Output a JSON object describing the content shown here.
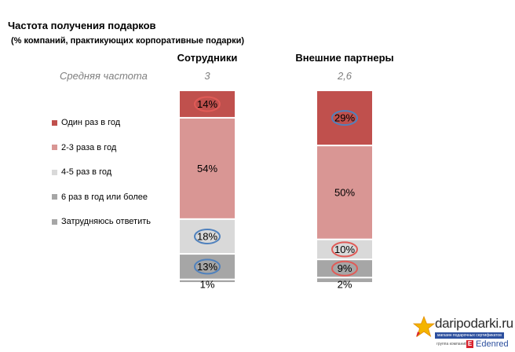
{
  "title": "Частота получения подарков",
  "subtitle": "(% компаний, практикующих корпоративные подарки)",
  "avg_label": "Средняя частота",
  "colors": {
    "once": "#c0504d",
    "two_three": "#d99694",
    "four_five": "#d9d9d9",
    "six_plus": "#a6a6a6",
    "hard": "#a6a6a6",
    "circle_red": "#e05b57",
    "circle_blue": "#4f81bd"
  },
  "chart_data": {
    "type": "bar",
    "stacked": true,
    "categories": [
      "Сотрудники",
      "Внешние партнеры"
    ],
    "averages": [
      "3",
      "2,6"
    ],
    "series": [
      {
        "name": "Один раз в год",
        "values": [
          14,
          29
        ],
        "labels": [
          "14%",
          "29%"
        ],
        "color": "#c0504d",
        "circle": [
          "red",
          "blue"
        ]
      },
      {
        "name": "2-3 раза в год",
        "values": [
          54,
          50
        ],
        "labels": [
          "54%",
          "50%"
        ],
        "color": "#d99694",
        "circle": [
          "",
          ""
        ]
      },
      {
        "name": "4-5 раз в год",
        "values": [
          18,
          10
        ],
        "labels": [
          "18%",
          "10%"
        ],
        "color": "#d9d9d9",
        "circle": [
          "blue",
          "red"
        ]
      },
      {
        "name": "6 раз в год или более",
        "values": [
          13,
          9
        ],
        "labels": [
          "13%",
          "9%"
        ],
        "color": "#a6a6a6",
        "circle": [
          "blue",
          "red"
        ]
      },
      {
        "name": "Затрудняюсь ответить",
        "values": [
          1,
          2
        ],
        "labels": [
          "1%",
          "2%"
        ],
        "color": "#a6a6a6",
        "circle": [
          "",
          ""
        ]
      }
    ]
  },
  "brand": {
    "name": "daripodarki.ru",
    "tagline": "магазин подарочных сертификатов",
    "group": "группа компаний",
    "partner": "Edenred"
  }
}
